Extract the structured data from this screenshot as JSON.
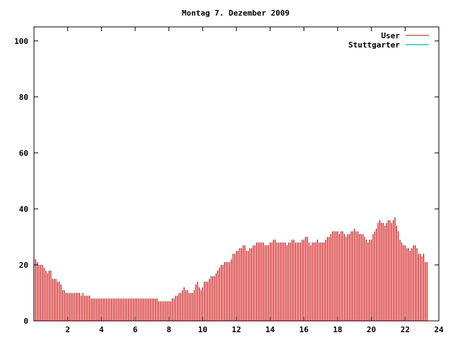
{
  "chart_data": {
    "type": "bar",
    "title": "Montag 7. Dezember 2009",
    "xlabel": "",
    "ylabel": "",
    "xlim": [
      0,
      24
    ],
    "ylim": [
      0,
      105
    ],
    "x_ticks": [
      2,
      4,
      6,
      8,
      10,
      12,
      14,
      16,
      18,
      20,
      22,
      24
    ],
    "y_ticks": [
      0,
      20,
      40,
      60,
      80,
      100
    ],
    "grid": false,
    "legend_position": "top-right",
    "colors": {
      "User": "#cc0000",
      "Stuttgarter": "#008b8b"
    },
    "series": [
      {
        "name": "User",
        "x_step_hours": 0.1,
        "values": [
          22,
          22,
          21,
          20,
          20,
          20,
          19,
          18,
          17,
          18,
          18,
          15,
          15,
          15,
          14,
          14,
          13,
          11,
          11,
          10,
          10,
          10,
          10,
          10,
          10,
          10,
          10,
          10,
          9,
          10,
          9,
          9,
          9,
          9,
          8,
          8,
          8,
          8,
          8,
          8,
          8,
          8,
          8,
          8,
          8,
          8,
          8,
          8,
          8,
          8,
          8,
          8,
          8,
          8,
          8,
          8,
          8,
          8,
          8,
          8,
          8,
          8,
          8,
          8,
          8,
          8,
          8,
          8,
          8,
          8,
          8,
          8,
          8,
          8,
          7,
          7,
          7,
          7,
          7,
          7,
          7,
          7,
          8,
          8,
          9,
          9,
          10,
          10,
          11,
          12,
          11,
          11,
          10,
          10,
          10,
          11,
          13,
          14,
          12,
          11,
          12,
          14,
          14,
          14,
          15,
          16,
          16,
          16,
          17,
          18,
          19,
          20,
          20,
          21,
          21,
          21,
          21,
          22,
          24,
          24,
          25,
          25,
          26,
          26,
          27,
          27,
          25,
          25,
          26,
          26,
          27,
          27,
          28,
          28,
          28,
          28,
          28,
          27,
          27,
          27,
          28,
          28,
          29,
          29,
          28,
          28,
          28,
          28,
          28,
          28,
          27,
          28,
          28,
          29,
          29,
          28,
          28,
          28,
          28,
          29,
          29,
          30,
          30,
          28,
          27,
          28,
          28,
          28,
          29,
          28,
          28,
          28,
          28,
          29,
          30,
          30,
          31,
          32,
          32,
          32,
          32,
          31,
          32,
          32,
          31,
          30,
          31,
          31,
          32,
          32,
          33,
          32,
          32,
          31,
          31,
          31,
          30,
          29,
          28,
          29,
          29,
          31,
          32,
          33,
          35,
          36,
          35,
          35,
          34,
          35,
          36,
          36,
          35,
          36,
          37,
          34,
          32,
          29,
          28,
          27,
          27,
          26,
          26,
          25,
          26,
          27,
          27,
          26,
          24,
          24,
          23,
          24,
          21,
          21
        ]
      },
      {
        "name": "Stuttgarter",
        "values": []
      }
    ]
  }
}
